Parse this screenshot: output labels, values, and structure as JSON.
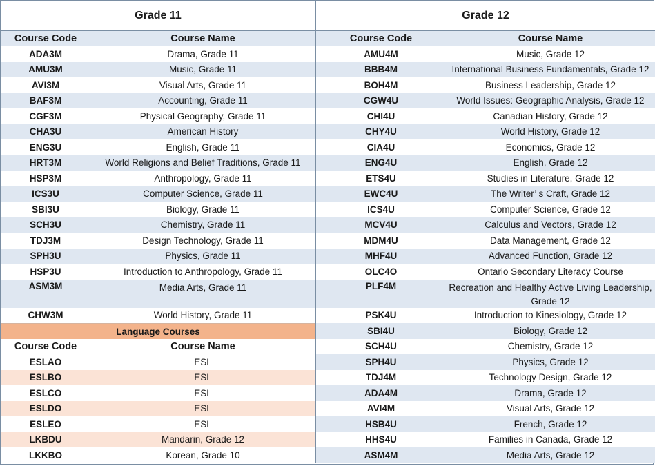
{
  "grade11": {
    "title": "Grade 11",
    "headers": {
      "code": "Course Code",
      "name": "Course Name"
    },
    "courses": [
      {
        "code": "ADA3M",
        "name": "Drama, Grade 11"
      },
      {
        "code": "AMU3M",
        "name": "Music, Grade 11"
      },
      {
        "code": "AVI3M",
        "name": "Visual Arts, Grade 11"
      },
      {
        "code": "BAF3M",
        "name": "Accounting, Grade 11"
      },
      {
        "code": "CGF3M",
        "name": "Physical Geography, Grade 11"
      },
      {
        "code": "CHA3U",
        "name": "American History"
      },
      {
        "code": "ENG3U",
        "name": "English, Grade 11"
      },
      {
        "code": "HRT3M",
        "name": "World Religions and Belief Traditions, Grade 11"
      },
      {
        "code": "HSP3M",
        "name": "Anthropology, Grade 11"
      },
      {
        "code": "ICS3U",
        "name": "Computer Science, Grade 11"
      },
      {
        "code": "SBI3U",
        "name": "Biology, Grade 11"
      },
      {
        "code": "SCH3U",
        "name": "Chemistry, Grade 11"
      },
      {
        "code": "TDJ3M",
        "name": "Design Technology, Grade 11"
      },
      {
        "code": "SPH3U",
        "name": "Physics, Grade 11"
      },
      {
        "code": "HSP3U",
        "name": "Introduction to Anthropology, Grade 11"
      },
      {
        "code": "ASM3M",
        "name": "Media Arts, Grade 11"
      },
      {
        "code": "CHW3M",
        "name": "World History, Grade 11"
      }
    ]
  },
  "language": {
    "title": "Language Courses",
    "headers": {
      "code": "Course Code",
      "name": "Course Name"
    },
    "courses": [
      {
        "code": "ESLAO",
        "name": "ESL"
      },
      {
        "code": "ESLBO",
        "name": "ESL"
      },
      {
        "code": "ESLCO",
        "name": "ESL"
      },
      {
        "code": "ESLDO",
        "name": "ESL"
      },
      {
        "code": "ESLEO",
        "name": "ESL"
      },
      {
        "code": "LKBDU",
        "name": "Mandarin, Grade 12"
      },
      {
        "code": "LKKBO",
        "name": "Korean, Grade 10"
      }
    ]
  },
  "grade12": {
    "title": "Grade 12",
    "headers": {
      "code": "Course Code",
      "name": "Course Name"
    },
    "courses": [
      {
        "code": "AMU4M",
        "name": "Music, Grade 12"
      },
      {
        "code": "BBB4M",
        "name": "International Business Fundamentals, Grade 12"
      },
      {
        "code": "BOH4M",
        "name": "Business Leadership, Grade 12"
      },
      {
        "code": "CGW4U",
        "name": "World Issues: Geographic Analysis, Grade 12"
      },
      {
        "code": "CHI4U",
        "name": "Canadian History, Grade 12"
      },
      {
        "code": "CHY4U",
        "name": "World History, Grade 12"
      },
      {
        "code": "CIA4U",
        "name": "Economics, Grade 12"
      },
      {
        "code": "ENG4U",
        "name": "English, Grade 12"
      },
      {
        "code": "ETS4U",
        "name": "Studies in Literature, Grade 12"
      },
      {
        "code": "EWC4U",
        "name": "The Writer’ s Craft, Grade 12"
      },
      {
        "code": "ICS4U",
        "name": "Computer Science, Grade 12"
      },
      {
        "code": "MCV4U",
        "name": "Calculus and Vectors, Grade 12"
      },
      {
        "code": "MDM4U",
        "name": "Data Management, Grade 12"
      },
      {
        "code": "MHF4U",
        "name": "Advanced Function, Grade 12"
      },
      {
        "code": "OLC4O",
        "name": "Ontario Secondary Literacy Course"
      },
      {
        "code": "PLF4M",
        "name": "Recreation and Healthy Active Living Leadership, Grade 12"
      },
      {
        "code": "PSK4U",
        "name": "Introduction to Kinesiology, Grade 12"
      },
      {
        "code": "SBI4U",
        "name": "Biology, Grade 12"
      },
      {
        "code": "SCH4U",
        "name": "Chemistry, Grade 12"
      },
      {
        "code": "SPH4U",
        "name": "Physics, Grade 12"
      },
      {
        "code": "TDJ4M",
        "name": "Technology Design, Grade 12"
      },
      {
        "code": "ADA4M",
        "name": "Drama, Grade 12"
      },
      {
        "code": "AVI4M",
        "name": "Visual Arts, Grade 12"
      },
      {
        "code": "HSB4U",
        "name": "French, Grade 12"
      },
      {
        "code": "HHS4U",
        "name": "Families in Canada, Grade 12"
      },
      {
        "code": "ASM4M",
        "name": "Media Arts, Grade 12"
      }
    ]
  },
  "colors": {
    "row_blue": "#dfe7f1",
    "lang_band": "#f3b38b",
    "row_peach": "#fbe3d6",
    "border": "#7a8ea3"
  }
}
